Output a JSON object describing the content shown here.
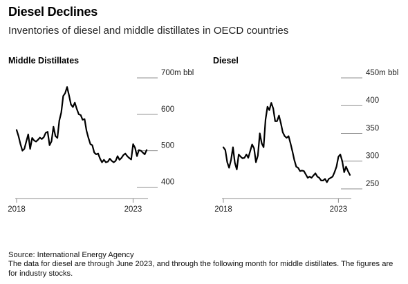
{
  "header": {
    "title": "Diesel Declines",
    "subtitle": "Inventories of diesel and middle distillates in OECD countries"
  },
  "footer": {
    "source": "Source: International Energy Agency",
    "note": "The data for diesel are through June 2023, and through the following month for middle distillates. The figures are for industry stocks."
  },
  "colors": {
    "line": "#000000",
    "grid": "#8c8c8c",
    "text": "#222222"
  },
  "chart_data": [
    {
      "type": "line",
      "title": "Middle Distillates",
      "unit": "m bbl",
      "y_ticks": [
        "700m bbl",
        "600",
        "500",
        "400"
      ],
      "y_tick_values": [
        700,
        600,
        500,
        400
      ],
      "x_ticks": [
        "2018",
        "2023"
      ],
      "x_tick_values": [
        2018,
        2023
      ],
      "xlim": [
        2018,
        2023.58
      ],
      "ylim": [
        380,
        700
      ],
      "grid": false,
      "series": [
        {
          "x": [
            2018.0,
            2018.083,
            2018.167,
            2018.25,
            2018.333,
            2018.417,
            2018.5,
            2018.583,
            2018.667,
            2018.75,
            2018.833,
            2018.917,
            2019.0,
            2019.083,
            2019.167,
            2019.25,
            2019.333,
            2019.417,
            2019.5,
            2019.583,
            2019.667,
            2019.75,
            2019.833,
            2019.917,
            2020.0,
            2020.083,
            2020.167,
            2020.25,
            2020.333,
            2020.417,
            2020.5,
            2020.583,
            2020.667,
            2020.75,
            2020.833,
            2020.917,
            2021.0,
            2021.083,
            2021.167,
            2021.25,
            2021.333,
            2021.417,
            2021.5,
            2021.583,
            2021.667,
            2021.75,
            2021.833,
            2021.917,
            2022.0,
            2022.083,
            2022.167,
            2022.25,
            2022.333,
            2022.417,
            2022.5,
            2022.583,
            2022.667,
            2022.75,
            2022.833,
            2022.917,
            2023.0,
            2023.083,
            2023.167,
            2023.25,
            2023.333,
            2023.417,
            2023.5,
            2023.583
          ],
          "y": [
            557,
            540,
            518,
            500,
            505,
            525,
            545,
            505,
            535,
            528,
            525,
            530,
            536,
            532,
            537,
            549,
            552,
            515,
            526,
            566,
            540,
            535,
            583,
            605,
            650,
            658,
            675,
            652,
            627,
            620,
            632,
            615,
            600,
            598,
            585,
            587,
            555,
            535,
            518,
            515,
            495,
            490,
            492,
            478,
            468,
            475,
            468,
            470,
            478,
            472,
            468,
            472,
            485,
            475,
            480,
            488,
            492,
            485,
            480,
            476,
            518,
            508,
            485,
            502,
            500,
            495,
            490,
            502
          ]
        }
      ]
    },
    {
      "type": "line",
      "title": "Diesel",
      "unit": "m bbl",
      "y_ticks": [
        "450m bbl",
        "400",
        "350",
        "300",
        "250"
      ],
      "y_tick_values": [
        450,
        400,
        350,
        300,
        250
      ],
      "x_ticks": [
        "2018",
        "2023"
      ],
      "x_tick_values": [
        2018,
        2023
      ],
      "xlim": [
        2018,
        2023.5
      ],
      "ylim": [
        240,
        450
      ],
      "grid": false,
      "series": [
        {
          "x": [
            2018.0,
            2018.083,
            2018.167,
            2018.25,
            2018.333,
            2018.417,
            2018.5,
            2018.583,
            2018.667,
            2018.75,
            2018.833,
            2018.917,
            2019.0,
            2019.083,
            2019.167,
            2019.25,
            2019.333,
            2019.417,
            2019.5,
            2019.583,
            2019.667,
            2019.75,
            2019.833,
            2019.917,
            2020.0,
            2020.083,
            2020.167,
            2020.25,
            2020.333,
            2020.417,
            2020.5,
            2020.583,
            2020.667,
            2020.75,
            2020.833,
            2020.917,
            2021.0,
            2021.083,
            2021.167,
            2021.25,
            2021.333,
            2021.417,
            2021.5,
            2021.583,
            2021.667,
            2021.75,
            2021.833,
            2021.917,
            2022.0,
            2022.083,
            2022.167,
            2022.25,
            2022.333,
            2022.417,
            2022.5,
            2022.583,
            2022.667,
            2022.75,
            2022.833,
            2022.917,
            2023.0,
            2023.083,
            2023.167,
            2023.25,
            2023.333,
            2023.417,
            2023.5
          ],
          "y": [
            325,
            320,
            298,
            288,
            302,
            325,
            297,
            285,
            312,
            308,
            305,
            306,
            312,
            306,
            318,
            330,
            323,
            298,
            310,
            350,
            332,
            325,
            375,
            398,
            392,
            405,
            395,
            372,
            372,
            382,
            368,
            352,
            345,
            342,
            345,
            332,
            318,
            302,
            290,
            288,
            282,
            283,
            282,
            276,
            270,
            272,
            270,
            274,
            278,
            272,
            270,
            265,
            265,
            268,
            262,
            268,
            270,
            272,
            280,
            290,
            308,
            312,
            300,
            280,
            290,
            282,
            275
          ]
        }
      ]
    }
  ]
}
